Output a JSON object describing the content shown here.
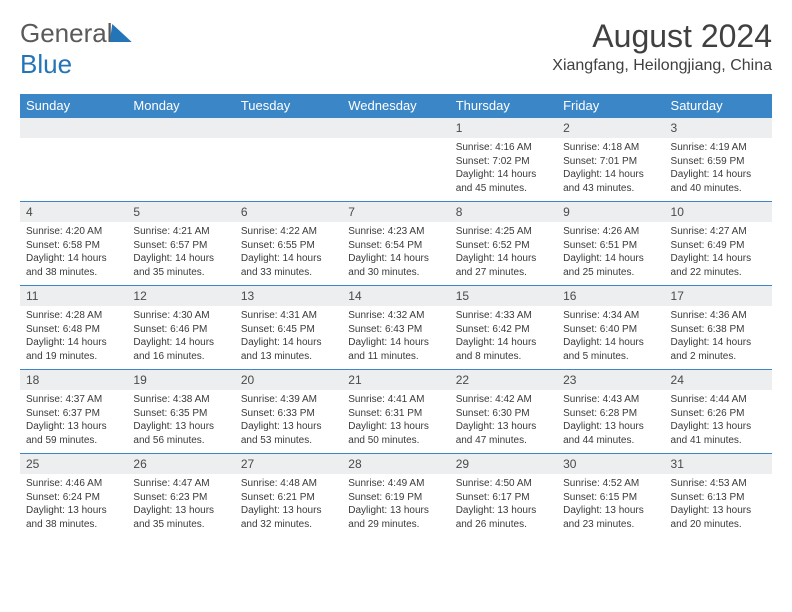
{
  "logo": {
    "word1": "General",
    "word2": "Blue"
  },
  "title": "August 2024",
  "location": "Xiangfang, Heilongjiang, China",
  "colors": {
    "header_bg": "#3b86c6",
    "header_fg": "#ffffff",
    "daynum_bg": "#eceeef",
    "border": "#3b86c6",
    "logo_blue": "#2474b8"
  },
  "weekdays": [
    "Sunday",
    "Monday",
    "Tuesday",
    "Wednesday",
    "Thursday",
    "Friday",
    "Saturday"
  ],
  "weeks": [
    [
      null,
      null,
      null,
      null,
      {
        "n": "1",
        "sr": "4:16 AM",
        "ss": "7:02 PM",
        "dl": "14 hours and 45 minutes."
      },
      {
        "n": "2",
        "sr": "4:18 AM",
        "ss": "7:01 PM",
        "dl": "14 hours and 43 minutes."
      },
      {
        "n": "3",
        "sr": "4:19 AM",
        "ss": "6:59 PM",
        "dl": "14 hours and 40 minutes."
      }
    ],
    [
      {
        "n": "4",
        "sr": "4:20 AM",
        "ss": "6:58 PM",
        "dl": "14 hours and 38 minutes."
      },
      {
        "n": "5",
        "sr": "4:21 AM",
        "ss": "6:57 PM",
        "dl": "14 hours and 35 minutes."
      },
      {
        "n": "6",
        "sr": "4:22 AM",
        "ss": "6:55 PM",
        "dl": "14 hours and 33 minutes."
      },
      {
        "n": "7",
        "sr": "4:23 AM",
        "ss": "6:54 PM",
        "dl": "14 hours and 30 minutes."
      },
      {
        "n": "8",
        "sr": "4:25 AM",
        "ss": "6:52 PM",
        "dl": "14 hours and 27 minutes."
      },
      {
        "n": "9",
        "sr": "4:26 AM",
        "ss": "6:51 PM",
        "dl": "14 hours and 25 minutes."
      },
      {
        "n": "10",
        "sr": "4:27 AM",
        "ss": "6:49 PM",
        "dl": "14 hours and 22 minutes."
      }
    ],
    [
      {
        "n": "11",
        "sr": "4:28 AM",
        "ss": "6:48 PM",
        "dl": "14 hours and 19 minutes."
      },
      {
        "n": "12",
        "sr": "4:30 AM",
        "ss": "6:46 PM",
        "dl": "14 hours and 16 minutes."
      },
      {
        "n": "13",
        "sr": "4:31 AM",
        "ss": "6:45 PM",
        "dl": "14 hours and 13 minutes."
      },
      {
        "n": "14",
        "sr": "4:32 AM",
        "ss": "6:43 PM",
        "dl": "14 hours and 11 minutes."
      },
      {
        "n": "15",
        "sr": "4:33 AM",
        "ss": "6:42 PM",
        "dl": "14 hours and 8 minutes."
      },
      {
        "n": "16",
        "sr": "4:34 AM",
        "ss": "6:40 PM",
        "dl": "14 hours and 5 minutes."
      },
      {
        "n": "17",
        "sr": "4:36 AM",
        "ss": "6:38 PM",
        "dl": "14 hours and 2 minutes."
      }
    ],
    [
      {
        "n": "18",
        "sr": "4:37 AM",
        "ss": "6:37 PM",
        "dl": "13 hours and 59 minutes."
      },
      {
        "n": "19",
        "sr": "4:38 AM",
        "ss": "6:35 PM",
        "dl": "13 hours and 56 minutes."
      },
      {
        "n": "20",
        "sr": "4:39 AM",
        "ss": "6:33 PM",
        "dl": "13 hours and 53 minutes."
      },
      {
        "n": "21",
        "sr": "4:41 AM",
        "ss": "6:31 PM",
        "dl": "13 hours and 50 minutes."
      },
      {
        "n": "22",
        "sr": "4:42 AM",
        "ss": "6:30 PM",
        "dl": "13 hours and 47 minutes."
      },
      {
        "n": "23",
        "sr": "4:43 AM",
        "ss": "6:28 PM",
        "dl": "13 hours and 44 minutes."
      },
      {
        "n": "24",
        "sr": "4:44 AM",
        "ss": "6:26 PM",
        "dl": "13 hours and 41 minutes."
      }
    ],
    [
      {
        "n": "25",
        "sr": "4:46 AM",
        "ss": "6:24 PM",
        "dl": "13 hours and 38 minutes."
      },
      {
        "n": "26",
        "sr": "4:47 AM",
        "ss": "6:23 PM",
        "dl": "13 hours and 35 minutes."
      },
      {
        "n": "27",
        "sr": "4:48 AM",
        "ss": "6:21 PM",
        "dl": "13 hours and 32 minutes."
      },
      {
        "n": "28",
        "sr": "4:49 AM",
        "ss": "6:19 PM",
        "dl": "13 hours and 29 minutes."
      },
      {
        "n": "29",
        "sr": "4:50 AM",
        "ss": "6:17 PM",
        "dl": "13 hours and 26 minutes."
      },
      {
        "n": "30",
        "sr": "4:52 AM",
        "ss": "6:15 PM",
        "dl": "13 hours and 23 minutes."
      },
      {
        "n": "31",
        "sr": "4:53 AM",
        "ss": "6:13 PM",
        "dl": "13 hours and 20 minutes."
      }
    ]
  ],
  "labels": {
    "sunrise": "Sunrise:",
    "sunset": "Sunset:",
    "daylight": "Daylight:"
  }
}
